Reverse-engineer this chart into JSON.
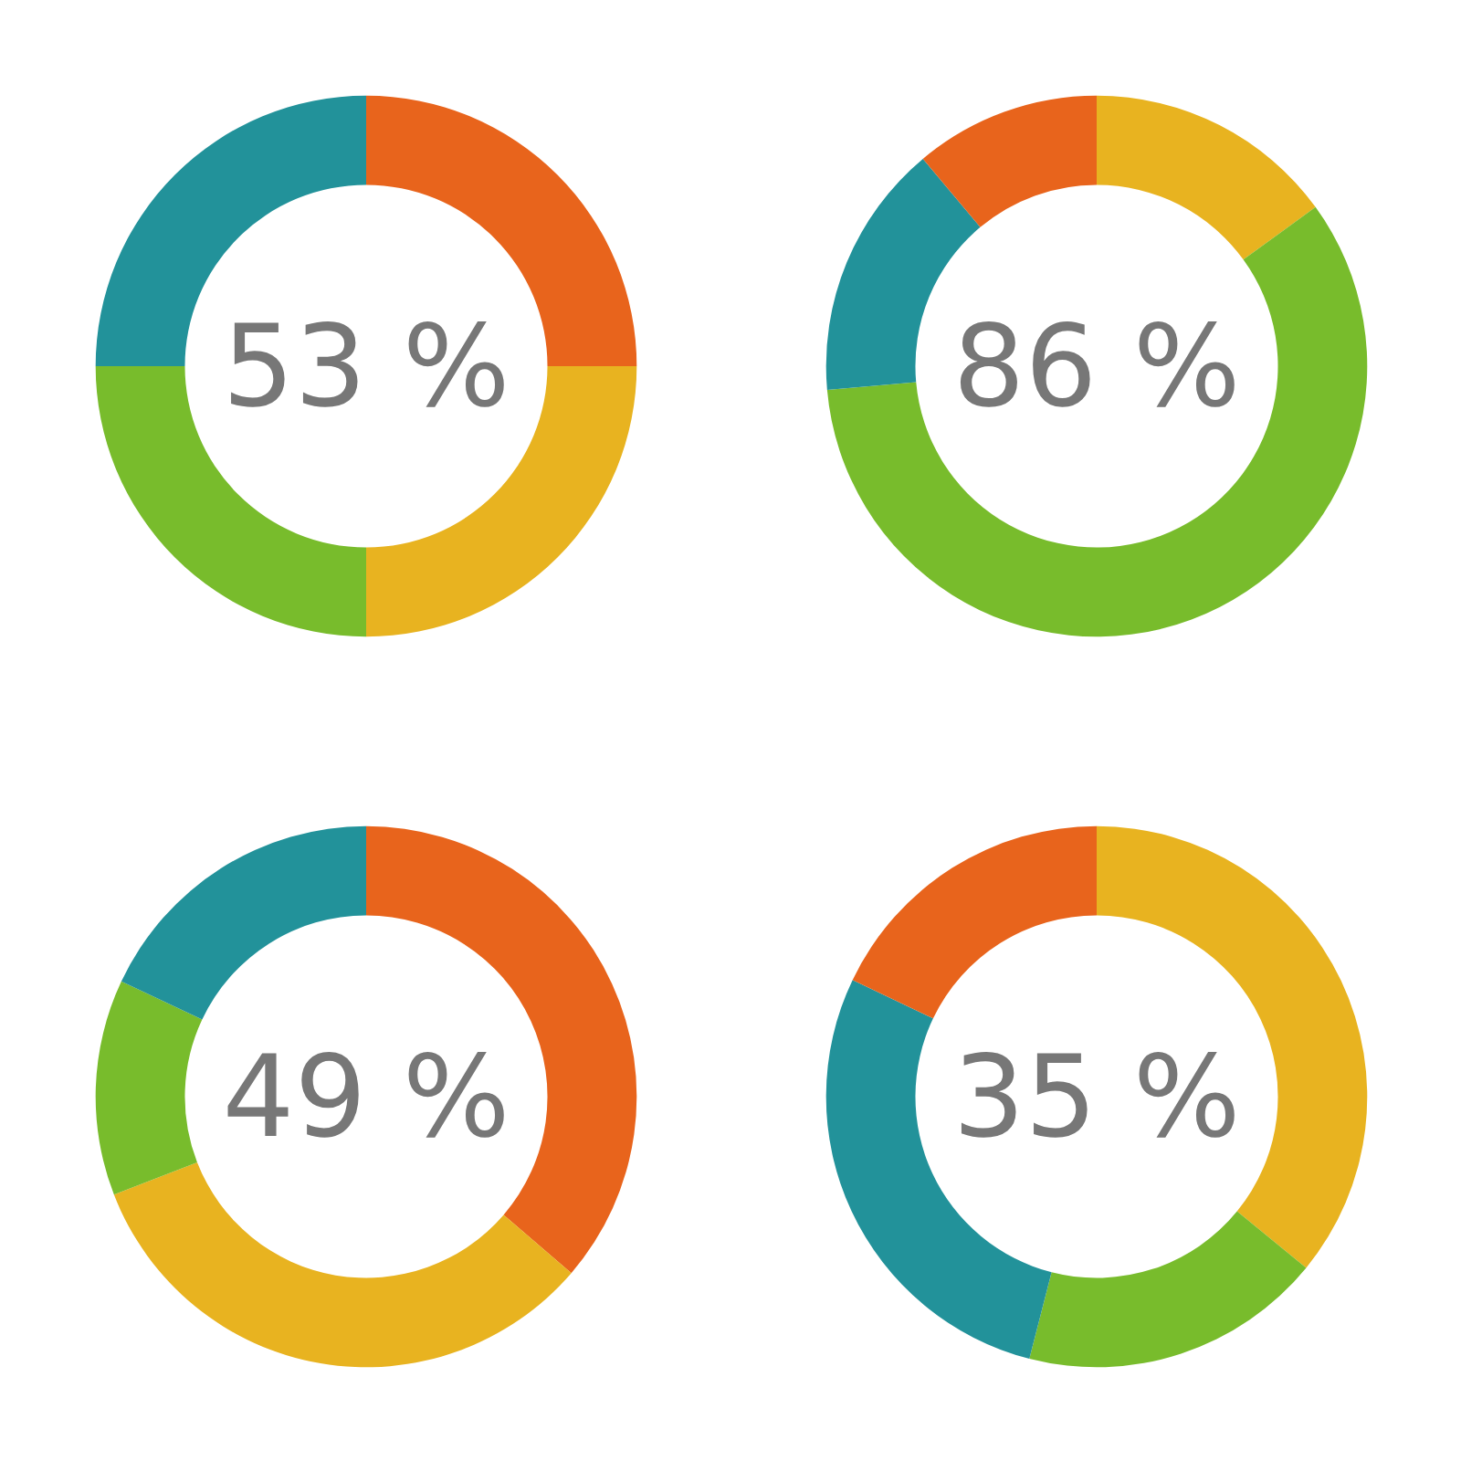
{
  "chart_data": [
    {
      "type": "donut",
      "categories": [
        null,
        null,
        null,
        null
      ],
      "values": [
        25,
        25,
        25,
        25
      ],
      "colors": [
        "#e8641c",
        "#e8b320",
        "#78bc2c",
        "#22929a"
      ],
      "annotations": [
        "53 %"
      ]
    },
    {
      "type": "donut",
      "categories": [
        null,
        null,
        null,
        null
      ],
      "values": [
        15.0,
        58.6,
        15.3,
        11.1
      ],
      "colors": [
        "#e8b320",
        "#78bc2c",
        "#22929a",
        "#e8641c"
      ],
      "annotations": [
        "86 %"
      ]
    },
    {
      "type": "donut",
      "categories": [
        null,
        null,
        null,
        null
      ],
      "values": [
        36.3,
        32.8,
        12.9,
        18.0
      ],
      "colors": [
        "#e8641c",
        "#e8b320",
        "#78bc2c",
        "#22929a"
      ],
      "annotations": [
        "49 %"
      ]
    },
    {
      "type": "donut",
      "categories": [
        null,
        null,
        null,
        null
      ],
      "values": [
        35.9,
        18.1,
        28.1,
        17.9
      ],
      "colors": [
        "#e8b320",
        "#78bc2c",
        "#22929a",
        "#e8641c"
      ],
      "annotations": [
        "35 %"
      ]
    }
  ]
}
